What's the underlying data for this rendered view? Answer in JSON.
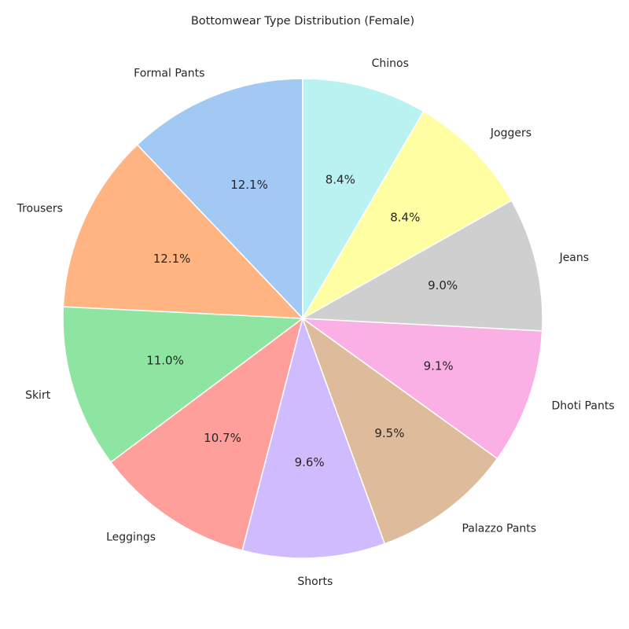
{
  "chart_data": {
    "type": "pie",
    "title": "Bottomwear Type Distribution (Female)",
    "start_angle_deg": 90,
    "direction": "counterclockwise",
    "slices": [
      {
        "label": "Formal Pants",
        "value": 12.1,
        "pct_text": "12.1%",
        "color": "#a1c9f4"
      },
      {
        "label": "Trousers",
        "value": 12.1,
        "pct_text": "12.1%",
        "color": "#ffb482"
      },
      {
        "label": "Skirt",
        "value": 11.0,
        "pct_text": "11.0%",
        "color": "#8de5a1"
      },
      {
        "label": "Leggings",
        "value": 10.7,
        "pct_text": "10.7%",
        "color": "#ff9f9b"
      },
      {
        "label": "Shorts",
        "value": 9.6,
        "pct_text": "9.6%",
        "color": "#d0bbff"
      },
      {
        "label": "Palazzo Pants",
        "value": 9.5,
        "pct_text": "9.5%",
        "color": "#debb9b"
      },
      {
        "label": "Dhoti Pants",
        "value": 9.1,
        "pct_text": "9.1%",
        "color": "#fab0e4"
      },
      {
        "label": "Jeans",
        "value": 9.0,
        "pct_text": "9.0%",
        "color": "#cfcfcf"
      },
      {
        "label": "Joggers",
        "value": 8.4,
        "pct_text": "8.4%",
        "color": "#fffea3"
      },
      {
        "label": "Chinos",
        "value": 8.4,
        "pct_text": "8.4%",
        "color": "#b9f2f0"
      }
    ]
  }
}
